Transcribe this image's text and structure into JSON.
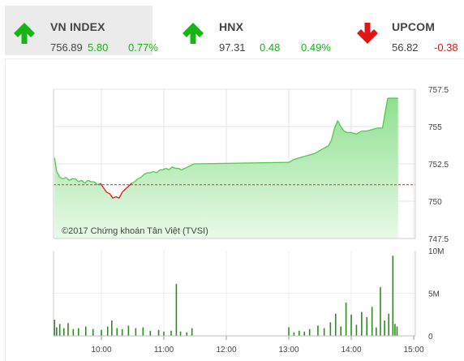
{
  "tabs": [
    {
      "name": "VN INDEX",
      "price": "756.89",
      "change": "5.80",
      "percent": "0.77%",
      "direction": "up",
      "active": true
    },
    {
      "name": "HNX",
      "price": "97.31",
      "change": "0.48",
      "percent": "0.49%",
      "direction": "up",
      "active": false
    },
    {
      "name": "UPCOM",
      "price": "56.82",
      "change": "-0.38",
      "percent": "",
      "direction": "down",
      "active": false
    }
  ],
  "colors": {
    "up": "#17b317",
    "down": "#e01616",
    "area": "#8fe08f",
    "line": "#4fc84f",
    "volume": "#2e8b22",
    "reference": "#d23030"
  },
  "chart_data": {
    "type": "area",
    "copyright": "©2017 Chứng khoán Tân Việt (TVSI)",
    "reference_value": 751.1,
    "price_axis": {
      "ylim": [
        747.5,
        757.5
      ],
      "tick_labels": [
        "757.5",
        "755",
        "752.5",
        "750",
        "747.5"
      ]
    },
    "volume_axis": {
      "ylim": [
        0,
        10
      ],
      "tick_labels": [
        "10M",
        "5M",
        "0"
      ]
    },
    "x_tick_labels": [
      "10:00",
      "11:00",
      "12:00",
      "13:00",
      "14:00",
      "15:00"
    ],
    "price_series": [
      {
        "t": "09:15",
        "v": 752.9
      },
      {
        "t": "09:17",
        "v": 752.0
      },
      {
        "t": "09:20",
        "v": 751.6
      },
      {
        "t": "09:23",
        "v": 751.5
      },
      {
        "t": "09:26",
        "v": 751.6
      },
      {
        "t": "09:29",
        "v": 751.4
      },
      {
        "t": "09:32",
        "v": 751.5
      },
      {
        "t": "09:35",
        "v": 751.5
      },
      {
        "t": "09:38",
        "v": 751.3
      },
      {
        "t": "09:41",
        "v": 751.4
      },
      {
        "t": "09:44",
        "v": 751.2
      },
      {
        "t": "09:47",
        "v": 751.4
      },
      {
        "t": "09:50",
        "v": 751.3
      },
      {
        "t": "09:53",
        "v": 751.3
      },
      {
        "t": "09:56",
        "v": 751.1
      },
      {
        "t": "09:59",
        "v": 751.2
      },
      {
        "t": "10:02",
        "v": 750.9
      },
      {
        "t": "10:05",
        "v": 750.6
      },
      {
        "t": "10:08",
        "v": 750.5
      },
      {
        "t": "10:11",
        "v": 750.2
      },
      {
        "t": "10:14",
        "v": 750.3
      },
      {
        "t": "10:17",
        "v": 750.2
      },
      {
        "t": "10:20",
        "v": 750.6
      },
      {
        "t": "10:23",
        "v": 750.8
      },
      {
        "t": "10:26",
        "v": 751.0
      },
      {
        "t": "10:29",
        "v": 751.2
      },
      {
        "t": "10:32",
        "v": 751.3
      },
      {
        "t": "10:35",
        "v": 751.5
      },
      {
        "t": "10:38",
        "v": 751.6
      },
      {
        "t": "10:41",
        "v": 751.8
      },
      {
        "t": "10:44",
        "v": 751.9
      },
      {
        "t": "10:47",
        "v": 751.9
      },
      {
        "t": "10:50",
        "v": 752.0
      },
      {
        "t": "10:53",
        "v": 751.9
      },
      {
        "t": "10:56",
        "v": 752.1
      },
      {
        "t": "10:59",
        "v": 752.1
      },
      {
        "t": "11:02",
        "v": 752.2
      },
      {
        "t": "11:05",
        "v": 752.1
      },
      {
        "t": "11:08",
        "v": 752.3
      },
      {
        "t": "11:11",
        "v": 752.2
      },
      {
        "t": "11:14",
        "v": 752.2
      },
      {
        "t": "11:17",
        "v": 752.1
      },
      {
        "t": "11:20",
        "v": 752.2
      },
      {
        "t": "11:23",
        "v": 752.3
      },
      {
        "t": "11:26",
        "v": 752.4
      },
      {
        "t": "11:29",
        "v": 752.5
      },
      {
        "t": "13:00",
        "v": 752.6
      },
      {
        "t": "13:05",
        "v": 752.8
      },
      {
        "t": "13:10",
        "v": 752.9
      },
      {
        "t": "13:15",
        "v": 753.0
      },
      {
        "t": "13:20",
        "v": 753.1
      },
      {
        "t": "13:25",
        "v": 753.2
      },
      {
        "t": "13:30",
        "v": 753.4
      },
      {
        "t": "13:35",
        "v": 753.6
      },
      {
        "t": "13:38",
        "v": 753.7
      },
      {
        "t": "13:41",
        "v": 754.1
      },
      {
        "t": "13:44",
        "v": 754.9
      },
      {
        "t": "13:47",
        "v": 755.4
      },
      {
        "t": "13:50",
        "v": 755.0
      },
      {
        "t": "13:53",
        "v": 754.7
      },
      {
        "t": "13:56",
        "v": 754.6
      },
      {
        "t": "14:00",
        "v": 754.6
      },
      {
        "t": "14:05",
        "v": 754.5
      },
      {
        "t": "14:10",
        "v": 754.7
      },
      {
        "t": "14:15",
        "v": 754.7
      },
      {
        "t": "14:20",
        "v": 754.8
      },
      {
        "t": "14:25",
        "v": 754.9
      },
      {
        "t": "14:30",
        "v": 754.9
      },
      {
        "t": "14:35",
        "v": 756.9
      },
      {
        "t": "14:45",
        "v": 756.9
      }
    ],
    "volume_series": [
      {
        "t": "09:15",
        "v": 1.9
      },
      {
        "t": "09:17",
        "v": 1.0
      },
      {
        "t": "09:20",
        "v": 1.4
      },
      {
        "t": "09:24",
        "v": 0.9
      },
      {
        "t": "09:28",
        "v": 1.5
      },
      {
        "t": "09:33",
        "v": 0.8
      },
      {
        "t": "09:38",
        "v": 0.9
      },
      {
        "t": "09:45",
        "v": 1.1
      },
      {
        "t": "09:52",
        "v": 0.8
      },
      {
        "t": "10:00",
        "v": 0.7
      },
      {
        "t": "10:06",
        "v": 1.1
      },
      {
        "t": "10:10",
        "v": 1.8
      },
      {
        "t": "10:15",
        "v": 0.9
      },
      {
        "t": "10:20",
        "v": 0.8
      },
      {
        "t": "10:26",
        "v": 1.2
      },
      {
        "t": "10:33",
        "v": 0.9
      },
      {
        "t": "10:40",
        "v": 1.0
      },
      {
        "t": "10:47",
        "v": 0.6
      },
      {
        "t": "10:55",
        "v": 0.7
      },
      {
        "t": "11:00",
        "v": 0.5
      },
      {
        "t": "11:07",
        "v": 0.6
      },
      {
        "t": "11:12",
        "v": 6.1
      },
      {
        "t": "11:16",
        "v": 0.5
      },
      {
        "t": "11:22",
        "v": 0.4
      },
      {
        "t": "11:27",
        "v": 0.9
      },
      {
        "t": "13:00",
        "v": 1.0
      },
      {
        "t": "13:05",
        "v": 0.4
      },
      {
        "t": "13:10",
        "v": 0.6
      },
      {
        "t": "13:15",
        "v": 0.5
      },
      {
        "t": "13:20",
        "v": 0.8
      },
      {
        "t": "13:28",
        "v": 1.2
      },
      {
        "t": "13:34",
        "v": 0.9
      },
      {
        "t": "13:40",
        "v": 1.6
      },
      {
        "t": "13:45",
        "v": 2.6
      },
      {
        "t": "13:50",
        "v": 1.1
      },
      {
        "t": "13:55",
        "v": 3.9
      },
      {
        "t": "14:00",
        "v": 2.5
      },
      {
        "t": "14:05",
        "v": 1.3
      },
      {
        "t": "14:10",
        "v": 2.8
      },
      {
        "t": "14:15",
        "v": 2.2
      },
      {
        "t": "14:20",
        "v": 3.4
      },
      {
        "t": "14:24",
        "v": 1.0
      },
      {
        "t": "14:28",
        "v": 5.7
      },
      {
        "t": "14:32",
        "v": 1.8
      },
      {
        "t": "14:36",
        "v": 2.6
      },
      {
        "t": "14:40",
        "v": 9.4
      },
      {
        "t": "14:42",
        "v": 1.4
      },
      {
        "t": "14:44",
        "v": 1.1
      }
    ]
  }
}
